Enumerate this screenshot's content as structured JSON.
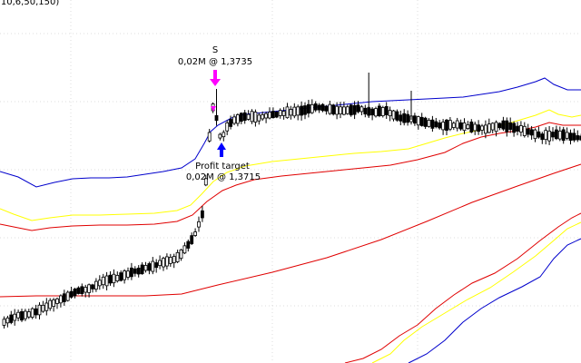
{
  "indicator_label": "(10,6,50,150)",
  "colors": {
    "candle": "#000000",
    "upper_band": "#0000cc",
    "yellow_band": "#ffff00",
    "red_band": "#e00000",
    "sell_marker": "#ff00ff",
    "target_marker": "#0000ff"
  },
  "chart_data": {
    "type": "candlestick",
    "title": "",
    "xlabel": "",
    "ylabel": "",
    "grid": true,
    "annotations": [
      {
        "name": "sell-signal",
        "label": "S",
        "detail": "0,02M @ 1,3735",
        "bar": 59,
        "price": 1.3735
      },
      {
        "name": "profit-target",
        "label": "Profit target",
        "detail": "0,02M @ 1,3715",
        "bar": 60,
        "price": 1.3715
      }
    ]
  }
}
